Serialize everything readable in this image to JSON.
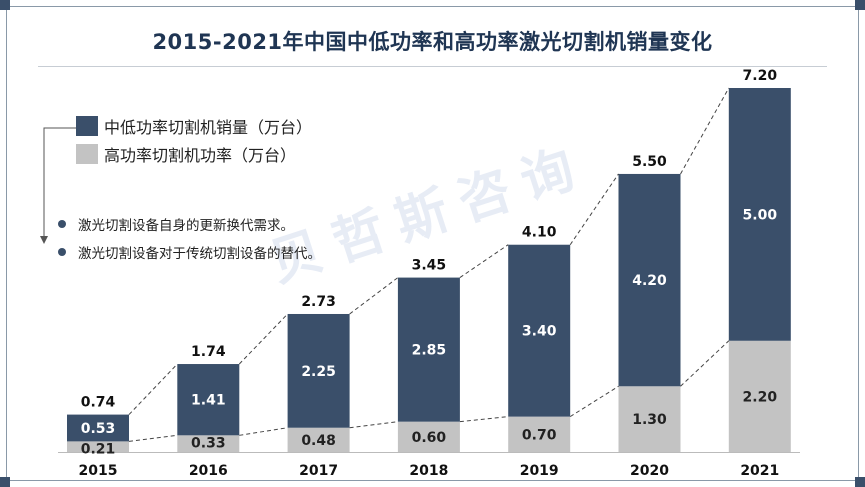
{
  "title": "2015-2021年中国中低功率和高功率激光切割机销量变化",
  "legend": [
    {
      "label": "中低功率切割机销量（万台）",
      "color": "#3a4f6a"
    },
    {
      "label": "高功率切割机功率（万台）",
      "color": "#c3c3c3"
    }
  ],
  "notes": [
    "激光切割设备自身的更新换代需求。",
    "激光切割设备对于传统切割设备的替代。"
  ],
  "watermark": "贝哲斯咨询",
  "colors": {
    "low_mid": "#3a4f6a",
    "high": "#c3c3c3",
    "text_dark": "#111111",
    "text_on_dark": "#ffffff",
    "text_on_light": "#222222"
  },
  "chart_data": {
    "type": "bar",
    "stacked": true,
    "title": "2015-2021年中国中低功率和高功率激光切割机销量变化",
    "categories": [
      "2015",
      "2016",
      "2017",
      "2018",
      "2019",
      "2020",
      "2021"
    ],
    "series": [
      {
        "name": "高功率切割机功率（万台）",
        "values": [
          0.21,
          0.33,
          0.48,
          0.6,
          0.7,
          1.3,
          2.2
        ],
        "labels": [
          "0.21",
          "0.33",
          "0.48",
          "0.60",
          "0.70",
          "1.30",
          "2.20"
        ]
      },
      {
        "name": "中低功率切割机销量（万台）",
        "values": [
          0.53,
          1.41,
          2.25,
          2.85,
          3.4,
          4.2,
          5.0
        ],
        "labels": [
          "0.53",
          "1.41",
          "2.25",
          "2.85",
          "3.40",
          "4.20",
          "5.00"
        ]
      }
    ],
    "totals": [
      0.74,
      1.74,
      2.73,
      3.45,
      4.1,
      5.5,
      7.2
    ],
    "total_labels": [
      "0.74",
      "1.74",
      "2.73",
      "3.45",
      "4.10",
      "5.50",
      "7.20"
    ],
    "xlabel": "",
    "ylabel": "",
    "ylim": [
      0,
      7.2
    ],
    "trend_lines": true,
    "legend_position": "top-left"
  }
}
